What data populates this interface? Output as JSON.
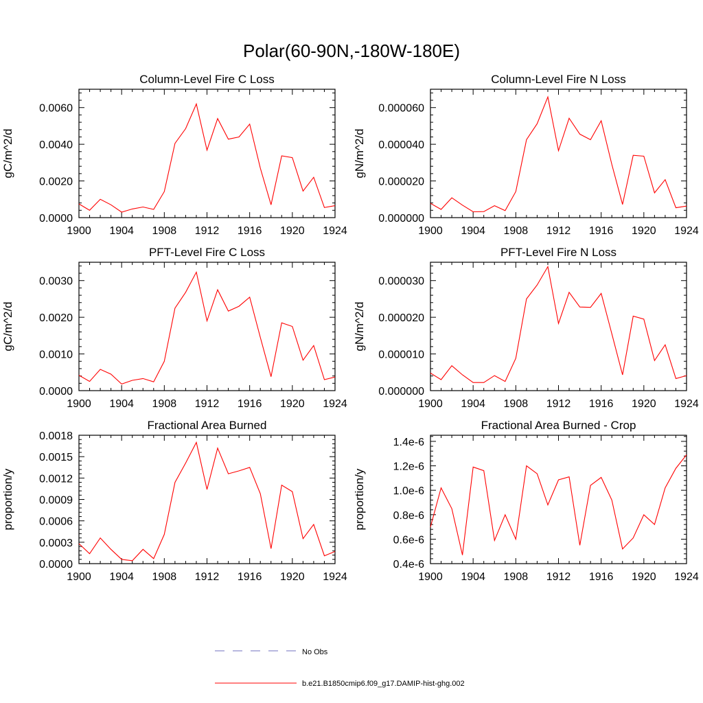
{
  "page_title": "Polar(60-90N,-180W-180E)",
  "legend": {
    "entries": [
      {
        "label": "No Obs",
        "color": "#6f6fbf",
        "style": "dashed"
      },
      {
        "label": "b.e21.B1850cmip6.f09_g17.DAMIP-hist-ghg.002",
        "color": "#ff0000",
        "style": "solid"
      }
    ]
  },
  "chart_data": [
    {
      "type": "line",
      "title": "Column-Level Fire C Loss",
      "ylabel": "gC/m^2/d",
      "xlim": [
        1900,
        1924
      ],
      "ylim": [
        0,
        0.007
      ],
      "xticks": [
        1900,
        1904,
        1908,
        1912,
        1916,
        1920,
        1924
      ],
      "xtick_labels": [
        "1900",
        "1904",
        "1908",
        "1912",
        "1916",
        "1920",
        "1924"
      ],
      "yticks": [
        0,
        0.002,
        0.004,
        0.006
      ],
      "ytick_labels": [
        "0.0000",
        "0.0020",
        "0.0040",
        "0.0060"
      ],
      "x": [
        1900,
        1901,
        1902,
        1903,
        1904,
        1905,
        1906,
        1907,
        1908,
        1909,
        1910,
        1911,
        1912,
        1913,
        1914,
        1915,
        1916,
        1917,
        1918,
        1919,
        1920,
        1921,
        1922,
        1923,
        1924
      ],
      "series": [
        {
          "name": "b.e21.B1850cmip6.f09_g17.DAMIP-hist-ghg.002",
          "color": "#ff0000",
          "values": [
            0.00075,
            0.0004,
            0.001,
            0.0007,
            0.0003,
            0.00047,
            0.00058,
            0.00045,
            0.00142,
            0.00405,
            0.00485,
            0.0062,
            0.00368,
            0.0054,
            0.00428,
            0.0044,
            0.0051,
            0.0027,
            0.0007,
            0.00337,
            0.00327,
            0.00145,
            0.0022,
            0.00055,
            0.00065
          ]
        }
      ]
    },
    {
      "type": "line",
      "title": "Column-Level Fire N Loss",
      "ylabel": "gN/m^2/d",
      "xlim": [
        1900,
        1924
      ],
      "ylim": [
        0,
        7e-05
      ],
      "xticks": [
        1900,
        1904,
        1908,
        1912,
        1916,
        1920,
        1924
      ],
      "xtick_labels": [
        "1900",
        "1904",
        "1908",
        "1912",
        "1916",
        "1920",
        "1924"
      ],
      "yticks": [
        0,
        2e-05,
        4e-05,
        6e-05
      ],
      "ytick_labels": [
        "0.000000",
        "0.000020",
        "0.000040",
        "0.000060"
      ],
      "x": [
        1900,
        1901,
        1902,
        1903,
        1904,
        1905,
        1906,
        1907,
        1908,
        1909,
        1910,
        1911,
        1912,
        1913,
        1914,
        1915,
        1916,
        1917,
        1918,
        1919,
        1920,
        1921,
        1922,
        1923,
        1924
      ],
      "series": [
        {
          "name": "b.e21.B1850cmip6.f09_g17.DAMIP-hist-ghg.002",
          "color": "#ff0000",
          "values": [
            7.8e-06,
            4.5e-06,
            1.08e-05,
            6.8e-06,
            3.2e-06,
            3.3e-06,
            6.5e-06,
            3.8e-06,
            1.42e-05,
            4.25e-05,
            5.12e-05,
            6.58e-05,
            3.65e-05,
            5.42e-05,
            4.55e-05,
            4.25e-05,
            5.28e-05,
            2.9e-05,
            7.2e-06,
            3.4e-05,
            3.35e-05,
            1.35e-05,
            2.07e-05,
            5.4e-06,
            6.3e-06
          ]
        }
      ]
    },
    {
      "type": "line",
      "title": "PFT-Level Fire C Loss",
      "ylabel": "gC/m^2/d",
      "xlim": [
        1900,
        1924
      ],
      "ylim": [
        0,
        0.0035
      ],
      "xticks": [
        1900,
        1904,
        1908,
        1912,
        1916,
        1920,
        1924
      ],
      "xtick_labels": [
        "1900",
        "1904",
        "1908",
        "1912",
        "1916",
        "1920",
        "1924"
      ],
      "yticks": [
        0,
        0.001,
        0.002,
        0.003
      ],
      "ytick_labels": [
        "0.0000",
        "0.0010",
        "0.0020",
        "0.0030"
      ],
      "x": [
        1900,
        1901,
        1902,
        1903,
        1904,
        1905,
        1906,
        1907,
        1908,
        1909,
        1910,
        1911,
        1912,
        1913,
        1914,
        1915,
        1916,
        1917,
        1918,
        1919,
        1920,
        1921,
        1922,
        1923,
        1924
      ],
      "series": [
        {
          "name": "b.e21.B1850cmip6.f09_g17.DAMIP-hist-ghg.002",
          "color": "#ff0000",
          "values": [
            0.00042,
            0.00025,
            0.00058,
            0.00045,
            0.00018,
            0.00028,
            0.00033,
            0.00024,
            0.0008,
            0.00225,
            0.00268,
            0.00323,
            0.0019,
            0.00275,
            0.00217,
            0.0023,
            0.00255,
            0.00145,
            0.00038,
            0.00185,
            0.00175,
            0.00083,
            0.00123,
            0.0003,
            0.00037
          ]
        }
      ]
    },
    {
      "type": "line",
      "title": "PFT-Level Fire N Loss",
      "ylabel": "gN/m^2/d",
      "xlim": [
        1900,
        1924
      ],
      "ylim": [
        0,
        3.5e-05
      ],
      "xticks": [
        1900,
        1904,
        1908,
        1912,
        1916,
        1920,
        1924
      ],
      "xtick_labels": [
        "1900",
        "1904",
        "1908",
        "1912",
        "1916",
        "1920",
        "1924"
      ],
      "yticks": [
        0,
        1e-05,
        2e-05,
        3e-05
      ],
      "ytick_labels": [
        "0.000000",
        "0.000010",
        "0.000020",
        "0.000030"
      ],
      "x": [
        1900,
        1901,
        1902,
        1903,
        1904,
        1905,
        1906,
        1907,
        1908,
        1909,
        1910,
        1911,
        1912,
        1913,
        1914,
        1915,
        1916,
        1917,
        1918,
        1919,
        1920,
        1921,
        1922,
        1923,
        1924
      ],
      "series": [
        {
          "name": "b.e21.B1850cmip6.f09_g17.DAMIP-hist-ghg.002",
          "color": "#ff0000",
          "values": [
            4.8e-06,
            3e-06,
            6.8e-06,
            4.3e-06,
            2.2e-06,
            2.2e-06,
            4.1e-06,
            2.5e-06,
            8.8e-06,
            2.5e-05,
            2.88e-05,
            3.38e-05,
            1.83e-05,
            2.68e-05,
            2.28e-05,
            2.27e-05,
            2.65e-05,
            1.55e-05,
            4.3e-06,
            2.03e-05,
            1.95e-05,
            8.2e-06,
            1.25e-05,
            3.3e-06,
            4.1e-06
          ]
        }
      ]
    },
    {
      "type": "line",
      "title": "Fractional Area Burned",
      "ylabel": "proportion/y",
      "xlim": [
        1900,
        1924
      ],
      "ylim": [
        0,
        0.0018
      ],
      "xticks": [
        1900,
        1904,
        1908,
        1912,
        1916,
        1920,
        1924
      ],
      "xtick_labels": [
        "1900",
        "1904",
        "1908",
        "1912",
        "1916",
        "1920",
        "1924"
      ],
      "yticks": [
        0,
        0.0003,
        0.0006,
        0.0009,
        0.0012,
        0.0015,
        0.0018
      ],
      "ytick_labels": [
        "0.0000",
        "0.0003",
        "0.0006",
        "0.0009",
        "0.0012",
        "0.0015",
        "0.0018"
      ],
      "x": [
        1900,
        1901,
        1902,
        1903,
        1904,
        1905,
        1906,
        1907,
        1908,
        1909,
        1910,
        1911,
        1912,
        1913,
        1914,
        1915,
        1916,
        1917,
        1918,
        1919,
        1920,
        1921,
        1922,
        1923,
        1924
      ],
      "series": [
        {
          "name": "b.e21.B1850cmip6.f09_g17.DAMIP-hist-ghg.002",
          "color": "#ff0000",
          "values": [
            0.00028,
            0.00014,
            0.00036,
            0.0002,
            6e-05,
            4e-05,
            0.0002,
            7e-05,
            0.00041,
            0.00114,
            0.00141,
            0.0017,
            0.00104,
            0.00162,
            0.00126,
            0.0013,
            0.00135,
            0.00098,
            0.00021,
            0.0011,
            0.00101,
            0.00035,
            0.00055,
            0.00011,
            0.00017
          ]
        }
      ]
    },
    {
      "type": "line",
      "title": "Fractional Area Burned - Crop",
      "ylabel": "proportion/y",
      "xlim": [
        1900,
        1924
      ],
      "ylim": [
        4e-07,
        1.45e-06
      ],
      "xticks": [
        1900,
        1904,
        1908,
        1912,
        1916,
        1920,
        1924
      ],
      "xtick_labels": [
        "1900",
        "1904",
        "1908",
        "1912",
        "1916",
        "1920",
        "1924"
      ],
      "yticks": [
        4e-07,
        6e-07,
        8e-07,
        1e-06,
        1.2e-06,
        1.4e-06
      ],
      "ytick_labels": [
        "0.4e-6",
        "0.6e-6",
        "0.8e-6",
        "1.0e-6",
        "1.2e-6",
        "1.4e-6"
      ],
      "x": [
        1900,
        1901,
        1902,
        1903,
        1904,
        1905,
        1906,
        1907,
        1908,
        1909,
        1910,
        1911,
        1912,
        1913,
        1914,
        1915,
        1916,
        1917,
        1918,
        1919,
        1920,
        1921,
        1922,
        1923,
        1924
      ],
      "series": [
        {
          "name": "b.e21.B1850cmip6.f09_g17.DAMIP-hist-ghg.002",
          "color": "#ff0000",
          "values": [
            7e-07,
            1.02e-06,
            8.5e-07,
            4.7e-07,
            1.19e-06,
            1.16e-06,
            5.9e-07,
            8e-07,
            6e-07,
            1.2e-06,
            1.135e-06,
            8.8e-07,
            1.085e-06,
            1.11e-06,
            5.5e-07,
            1.04e-06,
            1.105e-06,
            9.2e-07,
            5.2e-07,
            6.1e-07,
            8e-07,
            7.2e-07,
            1.02e-06,
            1.18e-06,
            1.29e-06
          ]
        }
      ]
    }
  ]
}
